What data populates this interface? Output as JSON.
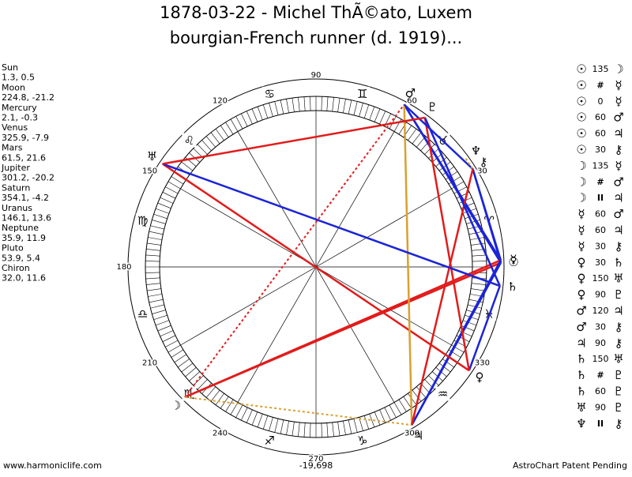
{
  "header": {
    "title_lines": [
      "1878-03-22 - Michel ThÃ©ato, Luxem",
      "bourgian-French runner (d. 1919)..."
    ]
  },
  "planets": [
    {
      "name": "Sun",
      "glyph": "☉",
      "lon": 1.3,
      "lat": 0.5
    },
    {
      "name": "Moon",
      "glyph": "☽",
      "lon": 224.8,
      "lat": -21.2
    },
    {
      "name": "Mercury",
      "glyph": "☿",
      "lon": 2.1,
      "lat": -0.3
    },
    {
      "name": "Venus",
      "glyph": "♀",
      "lon": 325.9,
      "lat": -7.9
    },
    {
      "name": "Mars",
      "glyph": "♂",
      "lon": 61.5,
      "lat": 21.6
    },
    {
      "name": "Jupiter",
      "glyph": "♃",
      "lon": 301.2,
      "lat": -20.2
    },
    {
      "name": "Saturn",
      "glyph": "♄",
      "lon": 354.1,
      "lat": -4.2
    },
    {
      "name": "Uranus",
      "glyph": "♅",
      "lon": 146.1,
      "lat": 13.6
    },
    {
      "name": "Neptune",
      "glyph": "♆",
      "lon": 35.9,
      "lat": 11.9
    },
    {
      "name": "Pluto",
      "glyph": "♇",
      "lon": 53.9,
      "lat": 5.4
    },
    {
      "name": "Chiron",
      "glyph": "⚷",
      "lon": {
        "value": 32.0,
        "label": "32.0"
      },
      "lat": 11.6
    }
  ],
  "aspects": [
    {
      "from": "☉",
      "aspect": "135",
      "to": "☽",
      "color": "#e21b1b"
    },
    {
      "from": "☉",
      "aspect": "#",
      "to": "☿",
      "color": "#e21b1b"
    },
    {
      "from": "☉",
      "aspect": "0",
      "to": "☿",
      "color": "#e21b1b"
    },
    {
      "from": "☉",
      "aspect": "60",
      "to": "♂",
      "color": "#1b24d8"
    },
    {
      "from": "☉",
      "aspect": "60",
      "to": "♃",
      "color": "#1b24d8"
    },
    {
      "from": "☉",
      "aspect": "30",
      "to": "⚷",
      "color": "#1b24d8"
    },
    {
      "from": "☽",
      "aspect": "135",
      "to": "☿",
      "color": "#e21b1b"
    },
    {
      "from": "☽",
      "aspect": "#",
      "to": "♂",
      "color": "#e21b1b"
    },
    {
      "from": "☽",
      "aspect": "II",
      "to": "♃",
      "color": "#d9a030"
    },
    {
      "from": "☿",
      "aspect": "60",
      "to": "♂",
      "color": "#1b24d8"
    },
    {
      "from": "☿",
      "aspect": "60",
      "to": "♃",
      "color": "#1b24d8"
    },
    {
      "from": "☿",
      "aspect": "30",
      "to": "⚷",
      "color": "#1b24d8"
    },
    {
      "from": "♀",
      "aspect": "30",
      "to": "♄",
      "color": "#1b24d8"
    },
    {
      "from": "♀",
      "aspect": "150",
      "to": "♅",
      "color": "#e21b1b"
    },
    {
      "from": "♀",
      "aspect": "90",
      "to": "♇",
      "color": "#e21b1b"
    },
    {
      "from": "♂",
      "aspect": "120",
      "to": "♃",
      "color": "#d9a030"
    },
    {
      "from": "♂",
      "aspect": "30",
      "to": "⚷",
      "color": "#1b24d8"
    },
    {
      "from": "♃",
      "aspect": "90",
      "to": "⚷",
      "color": "#e21b1b"
    },
    {
      "from": "♄",
      "aspect": "150",
      "to": "♅",
      "color": "#1b24d8"
    },
    {
      "from": "♄",
      "aspect": "#",
      "to": "♇",
      "color": "#e21b1b"
    },
    {
      "from": "♄",
      "aspect": "60",
      "to": "♇",
      "color": "#1b24d8"
    },
    {
      "from": "♅",
      "aspect": "90",
      "to": "♇",
      "color": "#e21b1b"
    },
    {
      "from": "♆",
      "aspect": "II",
      "to": "⚷",
      "color": "#d9a030"
    }
  ],
  "zodiac": [
    "♈",
    "♉",
    "♊",
    "♋",
    "♌",
    "♍",
    "♎",
    "♏",
    "♐",
    "♑",
    "♒",
    "♓"
  ],
  "degree_labels": [
    30,
    60,
    90,
    120,
    150,
    180,
    210,
    240,
    270,
    300,
    330
  ],
  "footer": {
    "left": "www.harmoniclife.com",
    "center": "-19,698",
    "right": "AstroChart Patent Pending"
  }
}
